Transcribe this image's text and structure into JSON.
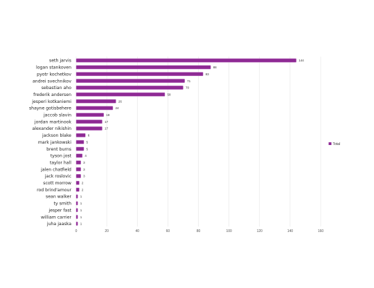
{
  "chart_data": {
    "type": "bar",
    "orientation": "horizontal",
    "categories": [
      "seth jarvis",
      "logan stankoven",
      "pyotr kochetkov",
      "andrei svechnikov",
      "sebastian aho",
      "frederik andersen",
      "jesperi kotkaniemi",
      "shayne gotisbehere",
      "jaccob slavin",
      "jordan martinook",
      "alexander nikishin",
      "jackson blake",
      "mark jankowski",
      "brent burns",
      "tyson jost",
      "taylor hall",
      "jalen chatfield",
      "jack roslovic",
      "scott morrow",
      "rod brind'amour",
      "sean walker",
      "ty smith",
      "jesper fast",
      "william carrier",
      "juha jaaska"
    ],
    "series": [
      {
        "name": "Total",
        "values": [
          144,
          88,
          83,
          71,
          70,
          58,
          26,
          24,
          18,
          17,
          17,
          6,
          5,
          5,
          4,
          3,
          3,
          3,
          2,
          2,
          1,
          1,
          1,
          1,
          1
        ]
      }
    ],
    "xlim": [
      0,
      160
    ],
    "xticks": [
      0,
      20,
      40,
      60,
      80,
      100,
      120,
      140,
      160
    ],
    "grid": true,
    "legend": "right",
    "bar_color": "#8e2a94",
    "bar_edge_color": "#c27ac6"
  }
}
